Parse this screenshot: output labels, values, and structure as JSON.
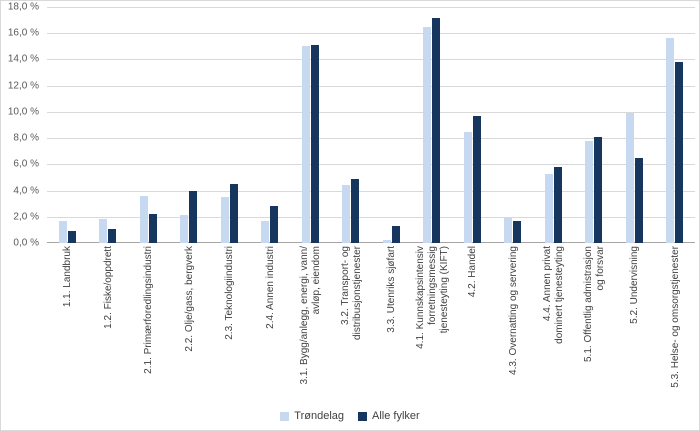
{
  "chart_data": {
    "type": "bar",
    "title": "",
    "xlabel": "",
    "ylabel": "",
    "ylim": [
      0,
      18
    ],
    "ytick_step": 2,
    "ytick_labels": [
      "0,0 %",
      "2,0 %",
      "4,0 %",
      "6,0 %",
      "8,0 %",
      "10,0 %",
      "12,0 %",
      "14,0 %",
      "16,0 %",
      "18,0 %"
    ],
    "grid": true,
    "legend_position": "bottom",
    "categories": [
      "1.1. Landbruk",
      "1.2. Fiske/oppdrett",
      "2.1. Primærforedlingsindustri",
      "2.2. Olje/gass, bergverk",
      "2.3. Teknologiindustri",
      "2.4. Annen industri",
      "3.1. Bygg/anlegg, energi, vann/\navløp, eiendom",
      "3.2. Transport- og\ndistribusjonstjenester",
      "3.3. Utenriks sjøfart",
      "4.1. Kunnskapsintensiv\nforretningsmessig\ntjenesteyting (KIFT)",
      "4.2. Handel",
      "4.3. Overnatting og servering",
      "4.4. Annen privat\ndominert tjenesteyting",
      "5.1. Offentlig admistrasjon\nog forsvar",
      "5.2. Undervisning",
      "5.3. Helse- og omsorgstjenester"
    ],
    "series": [
      {
        "name": "Trøndelag",
        "color": "#c6d9f1",
        "values": [
          1.7,
          1.8,
          3.6,
          2.1,
          3.5,
          1.7,
          15.0,
          4.4,
          0.2,
          16.5,
          8.5,
          1.9,
          5.3,
          7.8,
          9.9,
          15.6
        ]
      },
      {
        "name": "Alle fylker",
        "color": "#17365d",
        "values": [
          0.9,
          1.1,
          2.2,
          4.0,
          4.5,
          2.8,
          15.1,
          4.9,
          1.3,
          17.2,
          9.7,
          1.7,
          5.8,
          8.1,
          6.5,
          13.8
        ]
      }
    ],
    "colors": {
      "gridline": "#d9d9d9",
      "axis_line": "#a6a6a6",
      "tick_text": "#595959",
      "label_text": "#404040"
    }
  }
}
